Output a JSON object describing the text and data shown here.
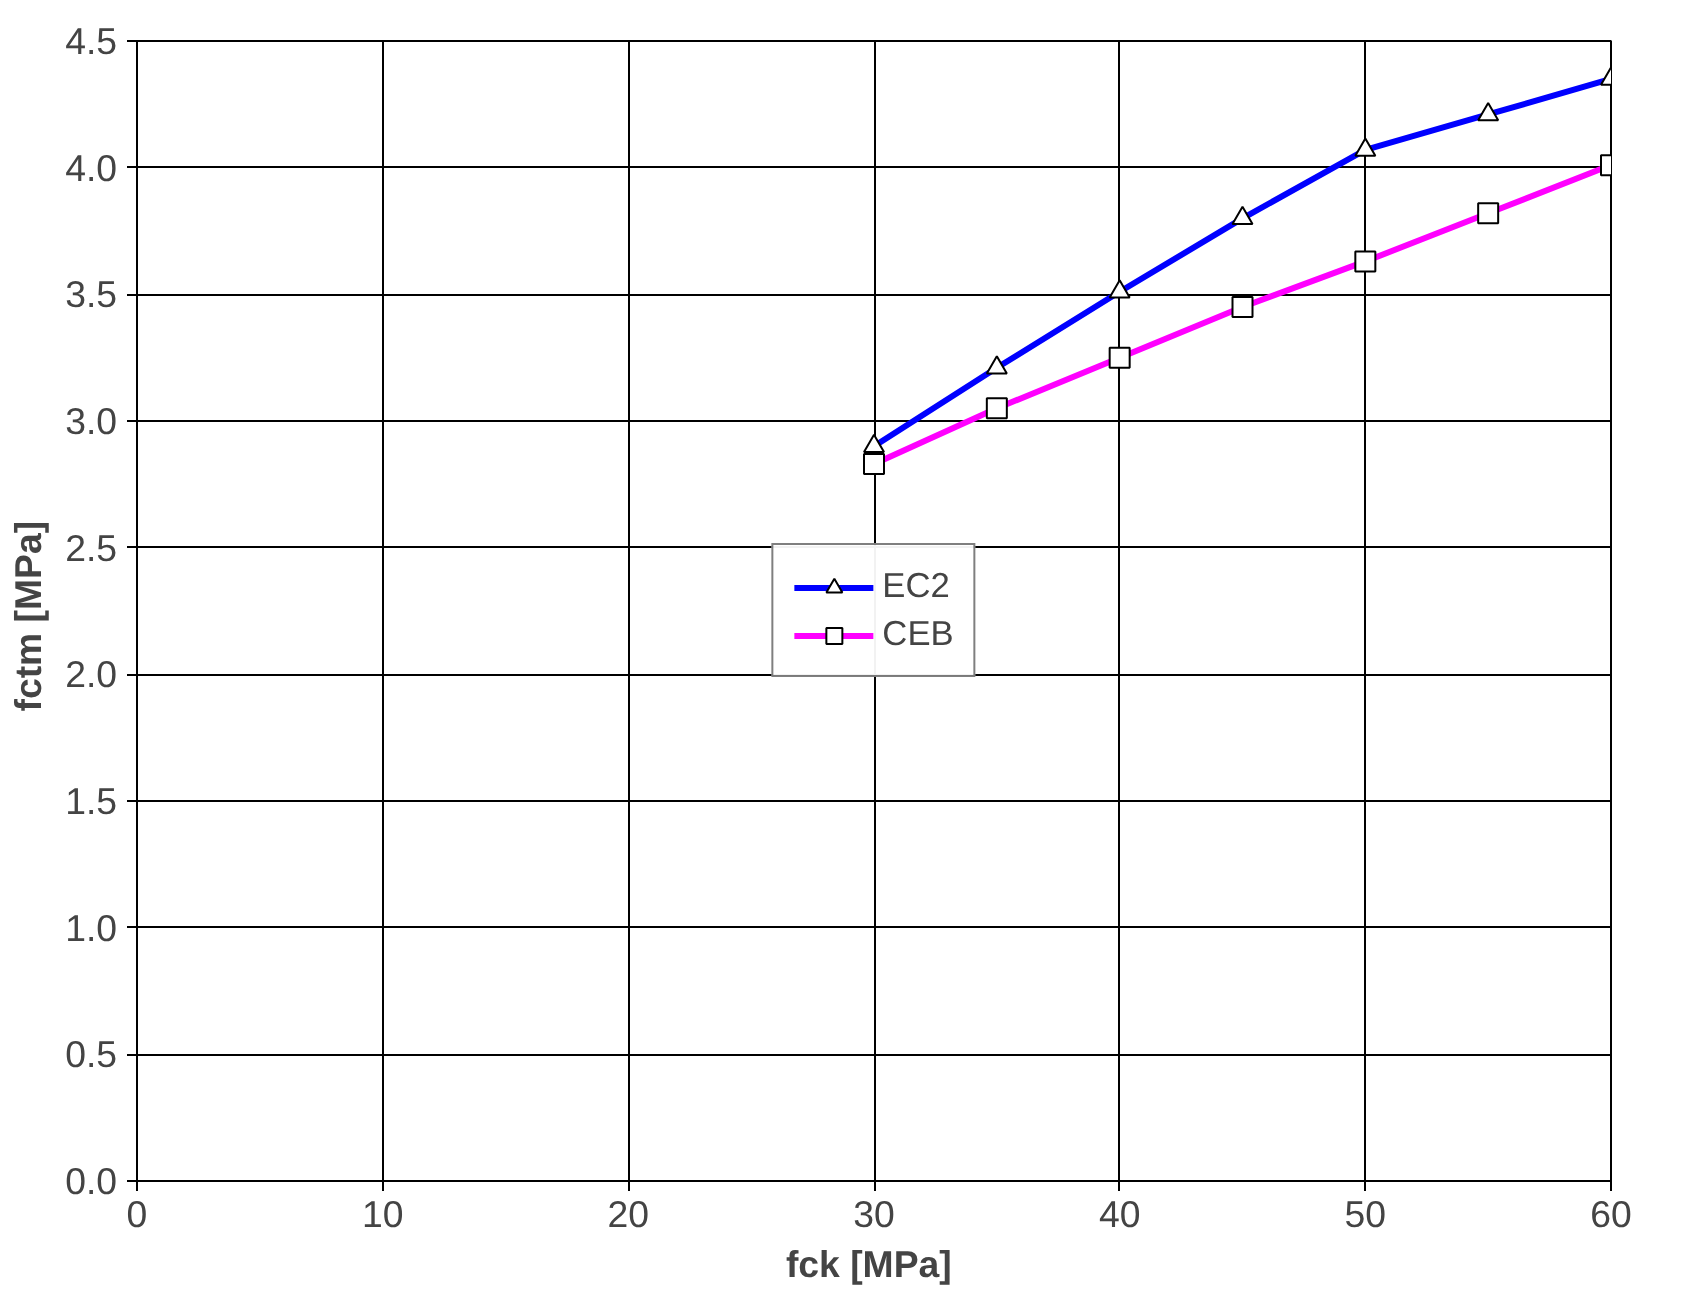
{
  "chart_data": {
    "type": "line",
    "xlabel": "fck  [MPa]",
    "ylabel": "fctm  [MPa]",
    "x": [
      30,
      35,
      40,
      45,
      50,
      55,
      60
    ],
    "series": [
      {
        "name": "EC2",
        "color": "#0000ff",
        "marker": "triangle",
        "values": [
          2.9,
          3.21,
          3.51,
          3.8,
          4.07,
          4.21,
          4.35
        ]
      },
      {
        "name": "CEB",
        "color": "#ff00ff",
        "marker": "square",
        "values": [
          2.83,
          3.05,
          3.25,
          3.45,
          3.63,
          3.82,
          4.01
        ]
      }
    ],
    "xlim": [
      0,
      60
    ],
    "xticks": [
      0,
      10,
      20,
      30,
      40,
      50,
      60
    ],
    "ylim": [
      0,
      4.5
    ],
    "yticks": [
      {
        "value": 0,
        "label": "0.0"
      },
      {
        "value": 0.5,
        "label": "0.5"
      },
      {
        "value": 1,
        "label": "1.0"
      },
      {
        "value": 1.5,
        "label": "1.5"
      },
      {
        "value": 2,
        "label": "2.0"
      },
      {
        "value": 2.5,
        "label": "2.5"
      },
      {
        "value": 3,
        "label": "3.0"
      },
      {
        "value": 3.5,
        "label": "3.5"
      },
      {
        "value": 4,
        "label": "4.0"
      },
      {
        "value": 4.5,
        "label": "4.5"
      }
    ],
    "grid": true,
    "legend": "center",
    "line_style": "solid"
  }
}
